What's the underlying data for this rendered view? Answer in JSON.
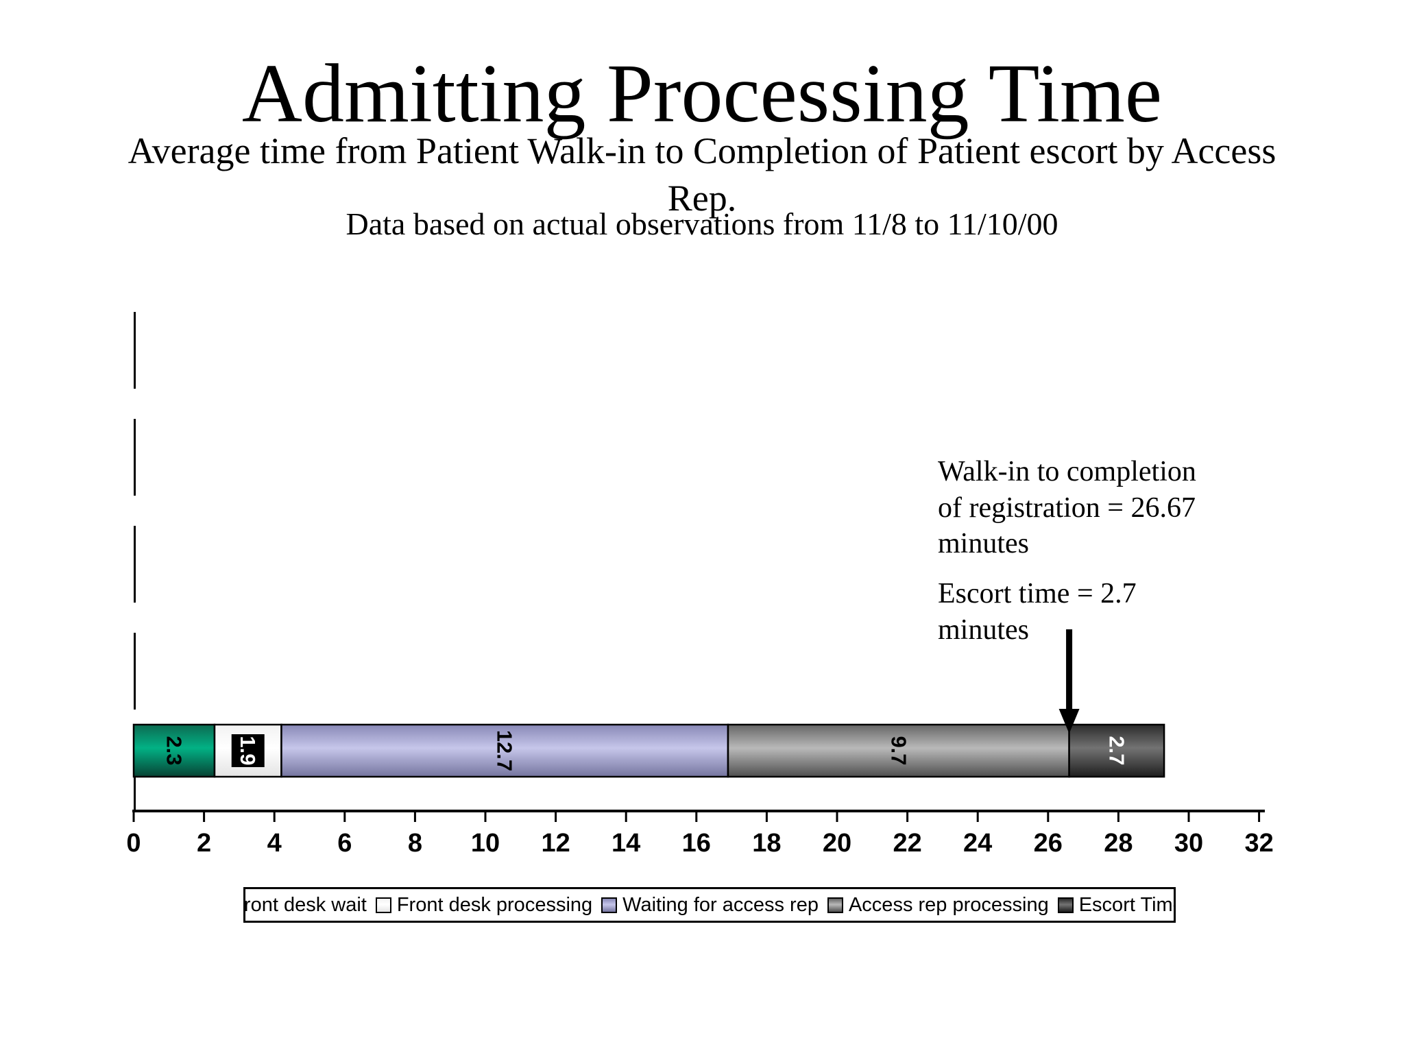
{
  "slide": {
    "title": "Admitting Processing Time",
    "subtitle": "Average time from Patient Walk-in to Completion of Patient escort by Access Rep.",
    "data_note": "Data based on actual observations from 11/8 to 11/10/00"
  },
  "annotations": {
    "registration": "Walk-in to completion of registration = 26.67 minutes",
    "escort": "Escort time = 2.7 minutes"
  },
  "chart_data": {
    "type": "bar",
    "orientation": "horizontal",
    "stacked": true,
    "categories": [
      ""
    ],
    "series": [
      {
        "name": "Front desk wait",
        "values": [
          2.3
        ],
        "display_value": "2.3",
        "gradient": [
          "#0C6B51",
          "#02B185",
          "#074233"
        ],
        "label_color": "#000000"
      },
      {
        "name": "Front desk processing",
        "values": [
          1.9
        ],
        "display_value": "1.9",
        "gradient": [
          "#F2F2F2",
          "#FFFFFF",
          "#E4E4E4"
        ],
        "label_color": "#FFFFFF",
        "label_bg": "#000000"
      },
      {
        "name": "Waiting for access rep",
        "values": [
          12.7
        ],
        "display_value": "12.7",
        "gradient": [
          "#8888B6",
          "#C6C6EA",
          "#75759F"
        ],
        "label_color": "#000000"
      },
      {
        "name": "Access rep processing",
        "values": [
          9.7
        ],
        "display_value": "9.7",
        "gradient": [
          "#666666",
          "#B9B9B9",
          "#4F4F4F"
        ],
        "label_color": "#000000"
      },
      {
        "name": "Escort Time",
        "values": [
          2.7
        ],
        "display_value": "2.7",
        "gradient": [
          "#2B2B2B",
          "#737373",
          "#1E1E1E"
        ],
        "label_color": "#FFFFFF"
      },
      {
        "name": "",
        "values": [],
        "display_value": "",
        "gradient": [
          "#000000",
          "#000000",
          "#000000"
        ]
      }
    ],
    "total": 29.3,
    "xlim": [
      0,
      32
    ],
    "x_ticks": [
      0,
      2,
      4,
      6,
      8,
      10,
      12,
      14,
      16,
      18,
      20,
      22,
      24,
      26,
      28,
      30,
      32
    ],
    "arrow_at": 26.6,
    "legend_position": "bottom",
    "grid": false,
    "axis_color": "#000000"
  }
}
